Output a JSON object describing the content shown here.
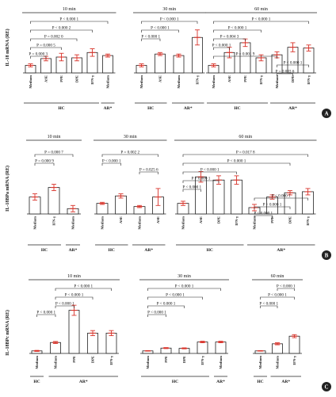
{
  "chart_data": [
    {
      "type": "bar",
      "panel": "A",
      "ylabel": "IL-18 mRNA (RE)",
      "time_groups": [
        {
          "time": "10 min",
          "categories": [
            "Medium",
            "ASE",
            "PPE",
            "DPE",
            "IFN-γ",
            "Medium"
          ],
          "values": [
            1.0,
            1.9,
            2.1,
            2.0,
            2.7,
            2.3
          ],
          "errors": [
            0.2,
            0.3,
            0.5,
            0.4,
            0.5,
            0.2
          ],
          "subjects": [
            {
              "label": "HC",
              "from": 0,
              "to": 4
            },
            {
              "label": "AR*",
              "from": 5,
              "to": 5
            }
          ],
          "comparisons": [
            {
              "label": "P < 0.000 1",
              "from": 0,
              "to": 5
            },
            {
              "label": "P < 0.000 2",
              "from": 0,
              "to": 4
            },
            {
              "label": "P = 0.002 0",
              "from": 0,
              "to": 3
            },
            {
              "label": "P = 0.000 5",
              "from": 0,
              "to": 2
            },
            {
              "label": "P = 0.000 3",
              "from": 0,
              "to": 1
            }
          ]
        },
        {
          "time": "30 min",
          "categories": [
            "Medium",
            "ASE",
            "Medium",
            "IFN-γ"
          ],
          "values": [
            1.0,
            2.5,
            2.3,
            4.7
          ],
          "errors": [
            0.2,
            0.2,
            0.2,
            1.0
          ],
          "subjects": [
            {
              "label": "HC",
              "from": 0,
              "to": 1
            },
            {
              "label": "AR*",
              "from": 2,
              "to": 3
            }
          ],
          "comparisons": [
            {
              "label": "P < 0.000 1",
              "from": 0,
              "to": 3
            },
            {
              "label": "P < 0.000 1",
              "from": 0,
              "to": 2
            },
            {
              "label": "P < 0.000 1",
              "from": 0,
              "to": 1
            }
          ]
        },
        {
          "time": "60 min",
          "categories": [
            "Medium",
            "ASE",
            "PPE",
            "IFN-γ",
            "Medium",
            "DPE",
            "IFN-γ"
          ],
          "values": [
            1.0,
            2.7,
            4.0,
            2.0,
            2.4,
            3.4,
            3.3
          ],
          "errors": [
            0.2,
            0.7,
            0.5,
            0.4,
            0.4,
            0.6,
            0.4
          ],
          "subjects": [
            {
              "label": "HC",
              "from": 0,
              "to": 3
            },
            {
              "label": "AR*",
              "from": 4,
              "to": 6
            }
          ],
          "comparisons": [
            {
              "label": "P < 0.000 1",
              "from": 0,
              "to": 6
            },
            {
              "label": "P < 0.000 1",
              "from": 0,
              "to": 3
            },
            {
              "label": "P = 0.004 3",
              "from": 0,
              "to": 2
            },
            {
              "label": "P < 0.000 1",
              "from": 0,
              "to": 1
            },
            {
              "label": "P = 0.001 9",
              "from": 0,
              "to": 4
            },
            {
              "label": "P < 0.000 1",
              "from": 4,
              "to": 6
            },
            {
              "label": "P = 0.003 6",
              "from": 4,
              "to": 5
            }
          ]
        }
      ]
    },
    {
      "type": "bar",
      "panel": "B",
      "ylabel": "IL-18BPa mRNA (RE)",
      "time_groups": [
        {
          "time": "10 min",
          "categories": [
            "Medium",
            "IFN-γ",
            "Medium"
          ],
          "values": [
            1.6,
            2.5,
            0.5
          ],
          "errors": [
            0.3,
            0.3,
            0.3
          ],
          "subjects": [
            {
              "label": "HC",
              "from": 0,
              "to": 1
            },
            {
              "label": "AR*",
              "from": 2,
              "to": 2
            }
          ],
          "comparisons": [
            {
              "label": "P = 0.000 7",
              "from": 0,
              "to": 2
            },
            {
              "label": "P = 0.000 9",
              "from": 0,
              "to": 1
            }
          ]
        },
        {
          "time": "30 min",
          "categories": [
            "Medium",
            "ASE",
            "Medium",
            "ASE"
          ],
          "values": [
            1.0,
            1.7,
            0.7,
            1.6
          ],
          "errors": [
            0.1,
            0.2,
            0.1,
            0.8
          ],
          "subjects": [
            {
              "label": "HC",
              "from": 0,
              "to": 1
            },
            {
              "label": "AR*",
              "from": 2,
              "to": 3
            }
          ],
          "comparisons": [
            {
              "label": "P = 0.002 2",
              "from": 0,
              "to": 3
            },
            {
              "label": "P < 0.000 1",
              "from": 0,
              "to": 1
            },
            {
              "label": "P = 0.025 6",
              "from": 2,
              "to": 3
            }
          ]
        },
        {
          "time": "60 min",
          "categories": [
            "Medium",
            "ASE",
            "DPE",
            "IFN-γ",
            "Medium",
            "PPE",
            "DPE",
            "IFN-γ"
          ],
          "values": [
            1.0,
            3.5,
            3.2,
            3.2,
            0.6,
            1.6,
            2.0,
            2.1
          ],
          "errors": [
            0.2,
            0.5,
            0.4,
            0.4,
            0.3,
            0.2,
            0.2,
            0.3
          ],
          "subjects": [
            {
              "label": "HC",
              "from": 0,
              "to": 3
            },
            {
              "label": "AR*",
              "from": 4,
              "to": 7
            }
          ],
          "comparisons": [
            {
              "label": "P = 0.017 8",
              "from": 0,
              "to": 7
            },
            {
              "label": "P < 0.000 1",
              "from": 0,
              "to": 6
            },
            {
              "label": "P < 0.000 1",
              "from": 0,
              "to": 3
            },
            {
              "label": "P < 0.000 1",
              "from": 0,
              "to": 2
            },
            {
              "label": "P < 0.000 1",
              "from": 0,
              "to": 1
            },
            {
              "label": "P < 0.000 1",
              "from": 4,
              "to": 7
            },
            {
              "label": "P < 0.000 1",
              "from": 4,
              "to": 6
            },
            {
              "label": "P < 0.000 1",
              "from": 4,
              "to": 5
            }
          ]
        }
      ]
    },
    {
      "type": "bar",
      "panel": "C",
      "ylabel": "IL-18BPc mRNA (RE)",
      "time_groups": [
        {
          "time": "10 min",
          "categories": [
            "Medium",
            "Medium",
            "PPE",
            "DPE",
            "IFN-γ"
          ],
          "values": [
            1.0,
            4.3,
            17.0,
            8.0,
            8.0
          ],
          "errors": [
            0.2,
            0.4,
            2.0,
            1.0,
            1.0
          ],
          "subjects": [
            {
              "label": "HC",
              "from": 0,
              "to": 0
            },
            {
              "label": "AR*",
              "from": 1,
              "to": 4
            }
          ],
          "comparisons": [
            {
              "label": "P < 0.000 1",
              "from": 1,
              "to": 4
            },
            {
              "label": "P < 0.000 1",
              "from": 1,
              "to": 3
            },
            {
              "label": "P < 0.000 1",
              "from": 1,
              "to": 2
            },
            {
              "label": "P < 0.000 1",
              "from": 0,
              "to": 1
            }
          ]
        },
        {
          "time": "30 min",
          "categories": [
            "Medium",
            "PPE",
            "DPE",
            "IFN-γ",
            "Medium"
          ],
          "values": [
            1.0,
            2.1,
            2.0,
            4.5,
            4.5
          ],
          "errors": [
            0.1,
            0.2,
            0.2,
            0.3,
            0.3
          ],
          "subjects": [
            {
              "label": "HC",
              "from": 0,
              "to": 3
            },
            {
              "label": "AR*",
              "from": 4,
              "to": 4
            }
          ],
          "comparisons": [
            {
              "label": "P < 0.000 1",
              "from": 0,
              "to": 4
            },
            {
              "label": "P < 0.000 1",
              "from": 0,
              "to": 3
            },
            {
              "label": "P < 0.000 1",
              "from": 0,
              "to": 2
            },
            {
              "label": "P < 0.000 1",
              "from": 0,
              "to": 1
            }
          ]
        },
        {
          "time": "60 min",
          "categories": [
            "Medium",
            "Medium",
            "IFN-γ"
          ],
          "values": [
            1.0,
            3.8,
            6.8
          ],
          "errors": [
            0.1,
            0.4,
            0.6
          ],
          "subjects": [
            {
              "label": "HC",
              "from": 0,
              "to": 0
            },
            {
              "label": "AR*",
              "from": 1,
              "to": 2
            }
          ],
          "comparisons": [
            {
              "label": "P < 0.000 1",
              "from": 1,
              "to": 2
            },
            {
              "label": "P < 0.000 1",
              "from": 0,
              "to": 2
            },
            {
              "label": "P < 0.000 1",
              "from": 0,
              "to": 1
            }
          ]
        }
      ]
    }
  ]
}
